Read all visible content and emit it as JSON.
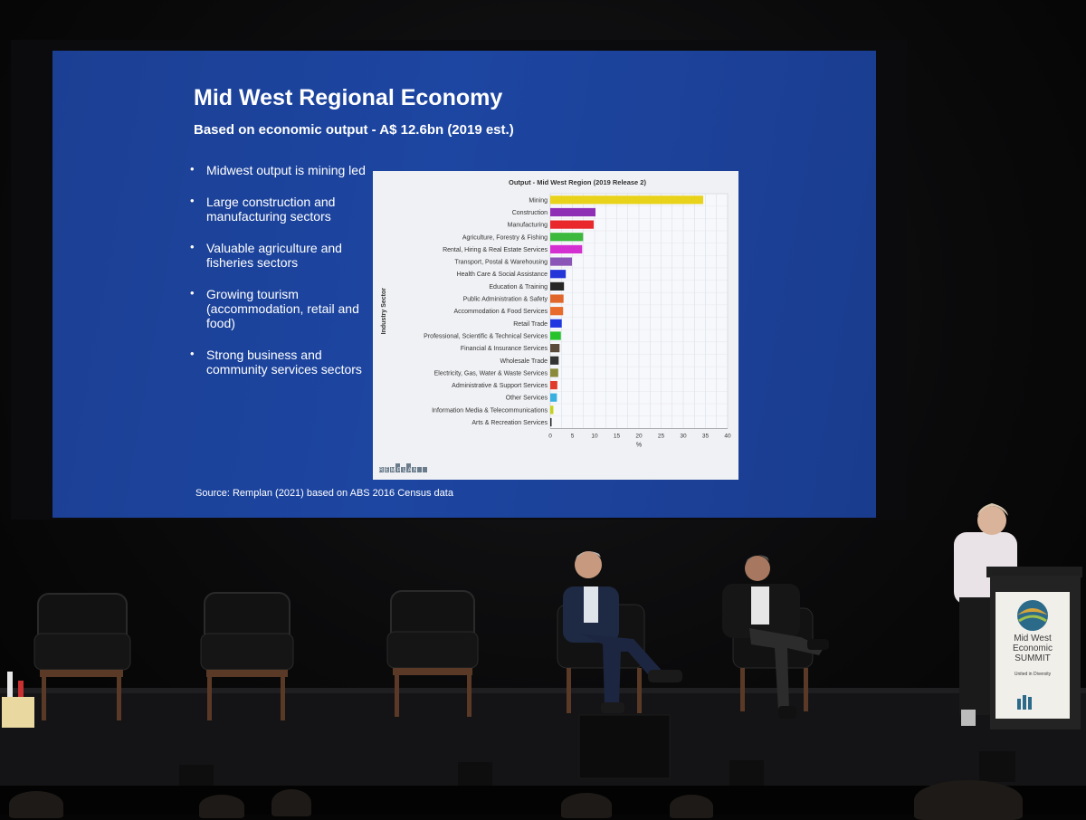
{
  "slide": {
    "title": "Mid West Regional Economy",
    "subtitle": "Based on economic output  - A$ 12.6bn (2019 est.)",
    "bullets": [
      "Midwest output is mining led",
      "Large construction and manufacturing sectors",
      "Valuable agriculture and fisheries sectors",
      "Growing tourism (accommodation, retail and food)",
      "Strong business and community services sectors"
    ],
    "source": "Source:  Remplan (2021) based on ABS 2016 Census data",
    "colors": {
      "slide_background": "#1d46a2",
      "text": "#ffffff"
    }
  },
  "logo": {
    "chart_logo_text": "REMPLAN"
  },
  "podium": {
    "line1": "Mid West",
    "line2": "Economic",
    "line3": "SUMMIT",
    "tagline": "United in Diversity"
  },
  "chart_data": {
    "type": "bar",
    "orientation": "horizontal",
    "title": "Output - Mid West Region (2019 Release 2)",
    "ylabel": "Industry Sector",
    "xlabel": "%",
    "xlim": [
      0,
      40
    ],
    "xticks": [
      0,
      5,
      10,
      15,
      20,
      25,
      30,
      35,
      40
    ],
    "grid": true,
    "categories": [
      "Mining",
      "Construction",
      "Manufacturing",
      "Agriculture, Forestry & Fishing",
      "Rental, Hiring & Real Estate Services",
      "Transport, Postal & Warehousing",
      "Health Care & Social Assistance",
      "Education & Training",
      "Public Administration & Safety",
      "Accommodation & Food Services",
      "Retail Trade",
      "Professional, Scientific & Technical Services",
      "Financial & Insurance Services",
      "Wholesale Trade",
      "Electricity, Gas, Water & Waste Services",
      "Administrative & Support Services",
      "Other Services",
      "Information Media & Telecommunications",
      "Arts & Recreation Services"
    ],
    "values": [
      34.5,
      10.2,
      9.8,
      7.4,
      7.2,
      4.9,
      3.5,
      3.1,
      3.0,
      2.9,
      2.6,
      2.4,
      2.1,
      1.9,
      1.8,
      1.6,
      1.5,
      0.7,
      0.3
    ],
    "colors": [
      "#e8d21a",
      "#8e2fb6",
      "#e8282b",
      "#3cb83c",
      "#d42fd1",
      "#8a55b6",
      "#2536d8",
      "#262626",
      "#e0662b",
      "#e86b2c",
      "#1f37e0",
      "#27c22c",
      "#5a4a3a",
      "#333333",
      "#8a8a3a",
      "#e03a2b",
      "#3ab0e0",
      "#c6d21a",
      "#222222"
    ]
  }
}
